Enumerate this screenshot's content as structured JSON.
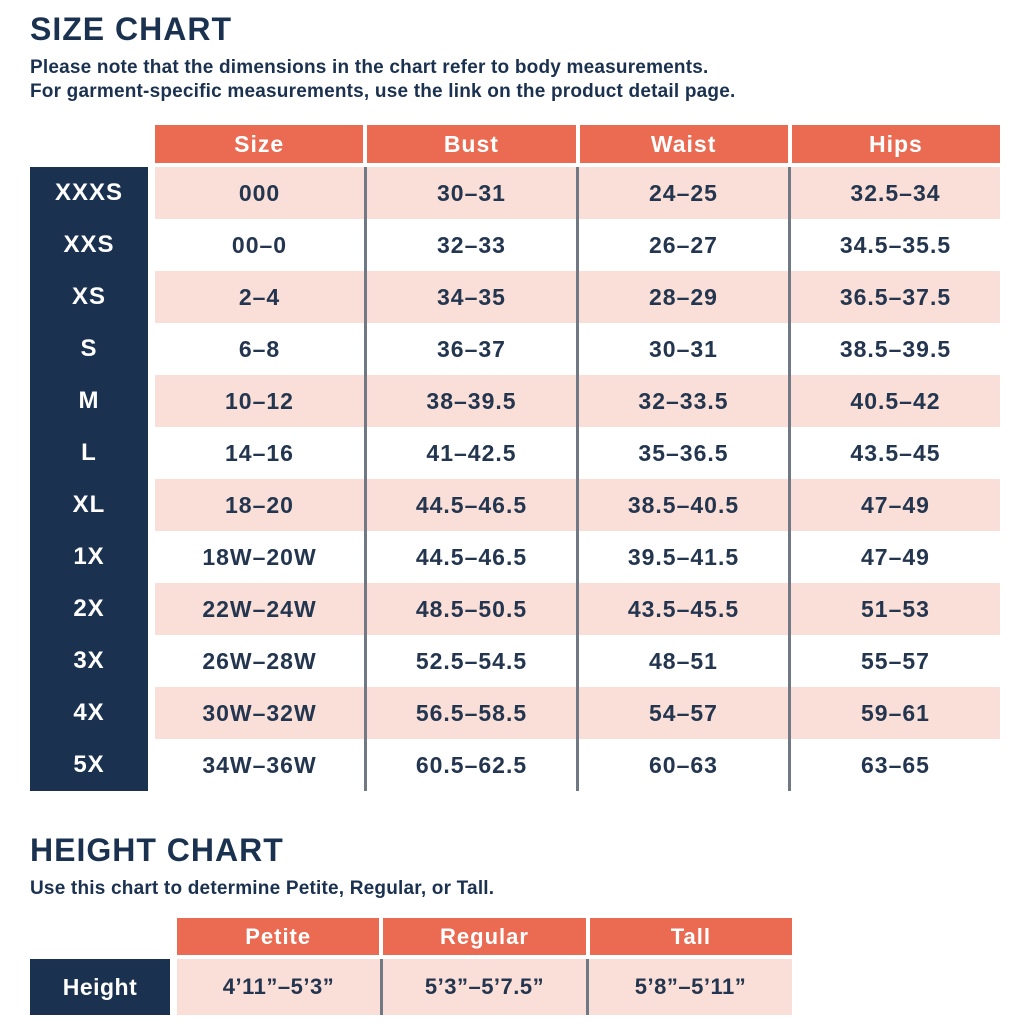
{
  "size_chart": {
    "title": "SIZE CHART",
    "subtitle_line1": "Please note that the dimensions in the chart refer to body measurements.",
    "subtitle_line2": "For garment-specific measurements, use the link on the product detail page.",
    "columns": [
      "Size",
      "Bust",
      "Waist",
      "Hips"
    ],
    "rows": [
      {
        "label": "XXXS",
        "size": "000",
        "bust": "30–31",
        "waist": "24–25",
        "hips": "32.5–34"
      },
      {
        "label": "XXS",
        "size": "00–0",
        "bust": "32–33",
        "waist": "26–27",
        "hips": "34.5–35.5"
      },
      {
        "label": "XS",
        "size": "2–4",
        "bust": "34–35",
        "waist": "28–29",
        "hips": "36.5–37.5"
      },
      {
        "label": "S",
        "size": "6–8",
        "bust": "36–37",
        "waist": "30–31",
        "hips": "38.5–39.5"
      },
      {
        "label": "M",
        "size": "10–12",
        "bust": "38–39.5",
        "waist": "32–33.5",
        "hips": "40.5–42"
      },
      {
        "label": "L",
        "size": "14–16",
        "bust": "41–42.5",
        "waist": "35–36.5",
        "hips": "43.5–45"
      },
      {
        "label": "XL",
        "size": "18–20",
        "bust": "44.5–46.5",
        "waist": "38.5–40.5",
        "hips": "47–49"
      },
      {
        "label": "1X",
        "size": "18W–20W",
        "bust": "44.5–46.5",
        "waist": "39.5–41.5",
        "hips": "47–49"
      },
      {
        "label": "2X",
        "size": "22W–24W",
        "bust": "48.5–50.5",
        "waist": "43.5–45.5",
        "hips": "51–53"
      },
      {
        "label": "3X",
        "size": "26W–28W",
        "bust": "52.5–54.5",
        "waist": "48–51",
        "hips": "55–57"
      },
      {
        "label": "4X",
        "size": "30W–32W",
        "bust": "56.5–58.5",
        "waist": "54–57",
        "hips": "59–61"
      },
      {
        "label": "5X",
        "size": "34W–36W",
        "bust": "60.5–62.5",
        "waist": "60–63",
        "hips": "63–65"
      }
    ]
  },
  "height_chart": {
    "title": "HEIGHT CHART",
    "subtitle": "Use this chart to determine Petite, Regular, or Tall.",
    "columns": [
      "Petite",
      "Regular",
      "Tall"
    ],
    "row_label": "Height",
    "values": [
      "4’11”–5’3”",
      "5’3”–5’7.5”",
      "5’8”–5’11”"
    ]
  },
  "colors": {
    "navy": "#1b3150",
    "coral": "#eb6a52",
    "pink": "#fadfd8",
    "divider": "#6f7883",
    "text": "#24364f"
  }
}
